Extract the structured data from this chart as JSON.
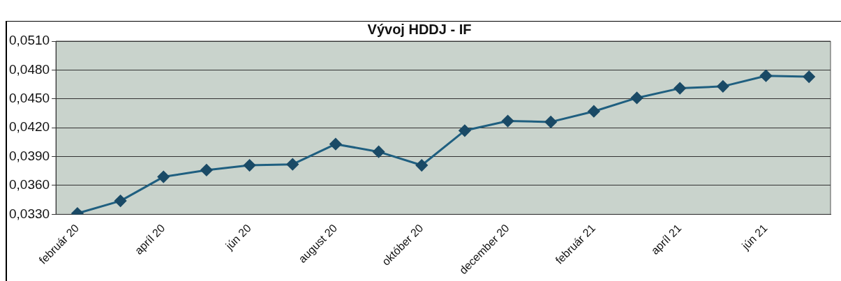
{
  "chart_data": {
    "type": "line",
    "title": "Vývoj HDDJ - IF",
    "categories": [
      "február 20",
      null,
      "apríl 20",
      null,
      "jún 20",
      null,
      "august 20",
      null,
      "október 20",
      null,
      "december 20",
      null,
      "február 21",
      null,
      "apríl 21",
      null,
      "jún 21",
      null
    ],
    "series": [
      {
        "color": "#1f5f80",
        "values": [
          0.0331,
          0.0344,
          0.0369,
          0.0376,
          0.0381,
          0.0382,
          0.0403,
          0.0395,
          0.0381,
          0.0417,
          0.0427,
          0.0426,
          0.0437,
          0.0451,
          0.0461,
          0.0463,
          0.0474,
          0.0473
        ]
      }
    ],
    "ylim": [
      0.033,
      0.051
    ],
    "yticks": [
      {
        "value": 0.033,
        "label": "0,0330"
      },
      {
        "value": 0.036,
        "label": "0,0360"
      },
      {
        "value": 0.039,
        "label": "0,0390"
      },
      {
        "value": 0.042,
        "label": "0,0420"
      },
      {
        "value": 0.045,
        "label": "0,0450"
      },
      {
        "value": 0.048,
        "label": "0,0480"
      },
      {
        "value": 0.051,
        "label": "0,0510"
      }
    ],
    "grid": "y",
    "legend": false,
    "marker": "diamond",
    "line_style": "solid"
  }
}
